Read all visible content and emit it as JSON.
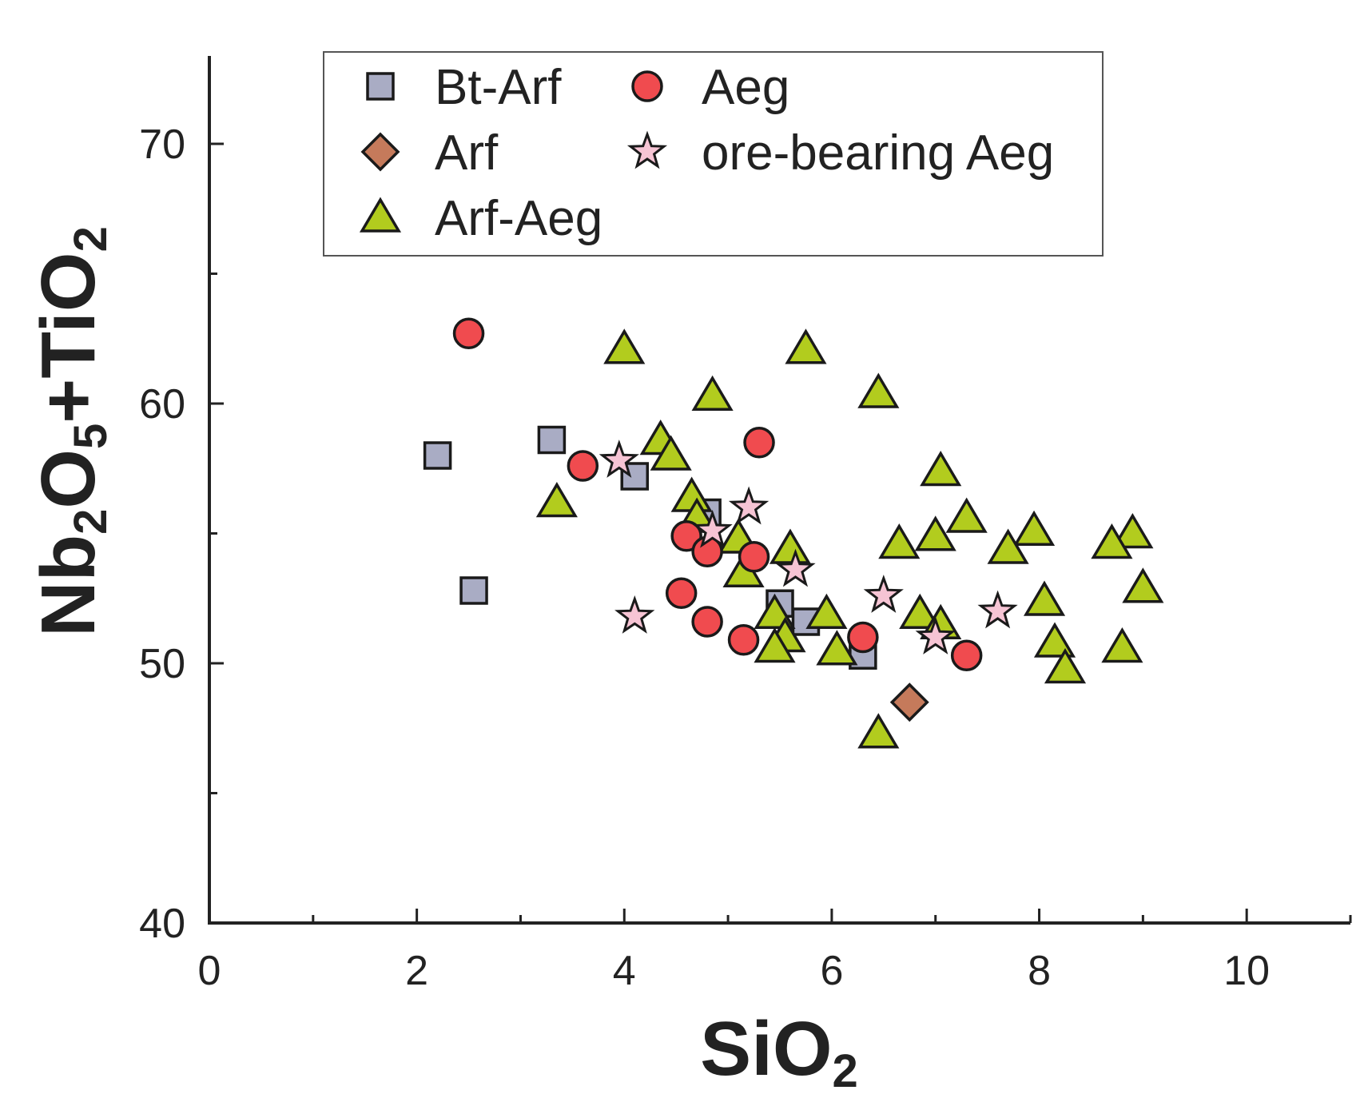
{
  "chart_data": {
    "type": "scatter",
    "title": "",
    "xlabel": {
      "main": "SiO",
      "sub": "2"
    },
    "ylabel": {
      "parts": [
        {
          "text": "Nb",
          "sub": false
        },
        {
          "text": "2",
          "sub": true
        },
        {
          "text": "O",
          "sub": false
        },
        {
          "text": "5",
          "sub": true
        },
        {
          "text": "+TiO",
          "sub": false
        },
        {
          "text": "2",
          "sub": true
        }
      ]
    },
    "xlim": [
      0,
      11
    ],
    "ylim": [
      40,
      73.5
    ],
    "xticks": [
      0,
      2,
      4,
      6,
      8,
      10
    ],
    "xtick_labels": [
      "0",
      "2",
      "4",
      "6",
      "8",
      "10"
    ],
    "xminor": [
      1,
      3,
      5,
      7,
      9,
      11
    ],
    "yticks": [
      40,
      50,
      60,
      70
    ],
    "ytick_labels": [
      "40",
      "50",
      "60",
      "70"
    ],
    "yminor": [
      45,
      55,
      65
    ],
    "grid": false,
    "legend_position": "top",
    "series": [
      {
        "name": "Bt-Arf",
        "marker": "square",
        "color": "#a9acc4",
        "points": [
          [
            2.2,
            58
          ],
          [
            2.55,
            52.8
          ],
          [
            3.3,
            58.6
          ],
          [
            4.1,
            57.2
          ],
          [
            4.8,
            55.8
          ],
          [
            5.5,
            52.3
          ],
          [
            5.75,
            51.6
          ],
          [
            6.3,
            50.3
          ]
        ]
      },
      {
        "name": "Arf",
        "marker": "diamond",
        "color": "#c57a5b",
        "points": [
          [
            6.75,
            48.5
          ]
        ]
      },
      {
        "name": "Arf-Aeg",
        "marker": "triangle",
        "color": "#b2cc1e",
        "points": [
          [
            4.0,
            62.1
          ],
          [
            5.75,
            62.1
          ],
          [
            4.85,
            60.3
          ],
          [
            6.45,
            60.4
          ],
          [
            4.35,
            58.6
          ],
          [
            4.45,
            58.0
          ],
          [
            3.35,
            56.2
          ],
          [
            4.65,
            56.4
          ],
          [
            4.7,
            55.6
          ],
          [
            7.05,
            57.4
          ],
          [
            7.3,
            55.6
          ],
          [
            7.95,
            55.1
          ],
          [
            8.9,
            55.0
          ],
          [
            5.1,
            54.8
          ],
          [
            5.6,
            54.4
          ],
          [
            6.65,
            54.6
          ],
          [
            7.0,
            54.9
          ],
          [
            7.7,
            54.4
          ],
          [
            8.7,
            54.6
          ],
          [
            5.15,
            53.5
          ],
          [
            9.0,
            52.9
          ],
          [
            8.05,
            52.4
          ],
          [
            5.45,
            51.9
          ],
          [
            5.95,
            51.9
          ],
          [
            6.85,
            51.9
          ],
          [
            7.05,
            51.5
          ],
          [
            5.55,
            51.0
          ],
          [
            5.45,
            50.6
          ],
          [
            6.05,
            50.5
          ],
          [
            8.15,
            50.8
          ],
          [
            8.8,
            50.6
          ],
          [
            8.25,
            49.8
          ],
          [
            6.45,
            47.3
          ]
        ]
      },
      {
        "name": "Aeg",
        "marker": "circle",
        "color": "#f04b4f",
        "points": [
          [
            2.5,
            62.7
          ],
          [
            3.6,
            57.6
          ],
          [
            5.3,
            58.5
          ],
          [
            4.6,
            54.9
          ],
          [
            4.8,
            54.3
          ],
          [
            5.25,
            54.1
          ],
          [
            4.55,
            52.7
          ],
          [
            4.8,
            51.6
          ],
          [
            5.15,
            50.9
          ],
          [
            6.3,
            51.0
          ],
          [
            7.3,
            50.3
          ]
        ]
      },
      {
        "name": "ore-bearing Aeg",
        "marker": "star",
        "color": "#f6c4d4",
        "points": [
          [
            3.95,
            57.8
          ],
          [
            5.2,
            56.0
          ],
          [
            4.85,
            55.1
          ],
          [
            5.65,
            53.6
          ],
          [
            6.5,
            52.6
          ],
          [
            7.6,
            52.0
          ],
          [
            4.1,
            51.8
          ],
          [
            7.0,
            51.0
          ]
        ]
      }
    ],
    "legend_order": [
      "Bt-Arf",
      "Aeg",
      "Arf",
      "ore-bearing Aeg",
      "Arf-Aeg"
    ]
  }
}
